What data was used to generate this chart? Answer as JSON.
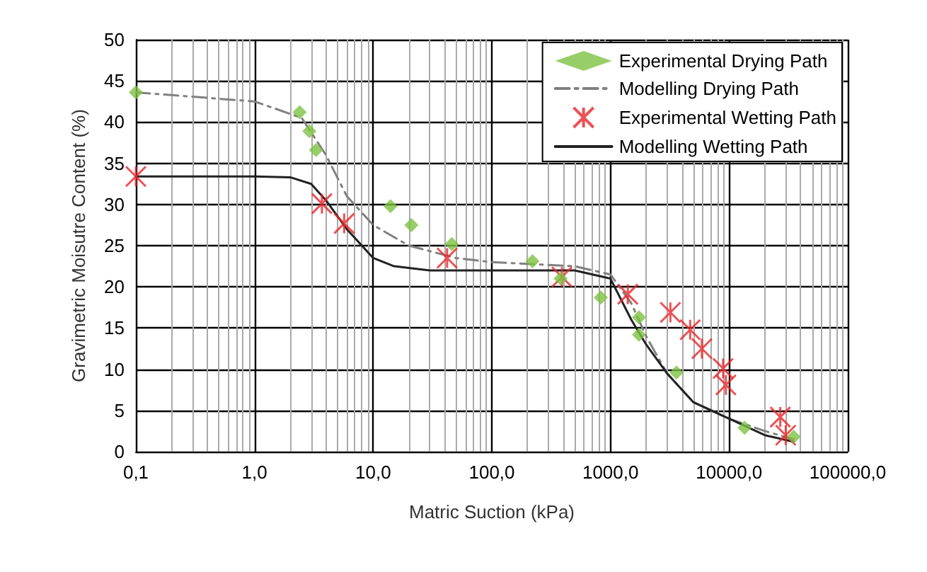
{
  "chart_data": {
    "type": "scatter",
    "xlabel": "Matric Suction (kPa)",
    "ylabel": "Gravimetric Moisutre Content (%)",
    "log": "x",
    "grid": true,
    "legend": "top right",
    "xlim": [
      0.1,
      100000
    ],
    "xticks": [
      {
        "value": 0.1,
        "label": "0,1"
      },
      {
        "value": 1,
        "label": "1,0"
      },
      {
        "value": 10,
        "label": "10,0"
      },
      {
        "value": 100,
        "label": "100,0"
      },
      {
        "value": 1000,
        "label": "1000,0"
      },
      {
        "value": 10000,
        "label": "10000,0"
      },
      {
        "value": 100000,
        "label": "100000,0"
      }
    ],
    "ylim": [
      0,
      50
    ],
    "yticks": [
      0,
      5,
      10,
      15,
      20,
      25,
      30,
      35,
      40,
      45,
      50
    ],
    "series": [
      {
        "name": "Experimental Drying Path",
        "marker": "diamond",
        "color": "#7dc242",
        "x": [
          0.1,
          2.4,
          2.9,
          3.3,
          14,
          21,
          46,
          220,
          380,
          830,
          1740,
          1740,
          3600,
          13500,
          35000
        ],
        "values": [
          43.6,
          41.2,
          38.9,
          36.6,
          29.8,
          27.5,
          25.2,
          23.1,
          21.0,
          18.7,
          16.3,
          14.2,
          9.6,
          2.9,
          1.8
        ]
      },
      {
        "name": "Modelling Drying Path",
        "type": "line",
        "marker": "none",
        "line_style": "dashdot",
        "color": "#808080",
        "x": [
          0.1,
          1,
          2.5,
          4,
          6,
          10,
          20,
          50,
          100,
          500,
          1000,
          1500,
          2000,
          3000,
          5000,
          10000,
          20000,
          35000
        ],
        "values": [
          43.6,
          42.5,
          40.5,
          36,
          31,
          27.5,
          25,
          23.5,
          23,
          22.5,
          21.5,
          18,
          14,
          9.5,
          6,
          4,
          2.5,
          1.5
        ]
      },
      {
        "name": "Experimental Wetting Path",
        "marker": "cross",
        "color": "#e8272a",
        "x": [
          0.1,
          3.7,
          5.7,
          42,
          390,
          1400,
          3200,
          4700,
          5900,
          8900,
          9400,
          27000,
          30000
        ],
        "values": [
          33.4,
          30.1,
          27.7,
          23.5,
          21.2,
          19.1,
          16.9,
          14.8,
          12.5,
          10.1,
          8.1,
          4.2,
          2.0
        ]
      },
      {
        "name": "Modelling Wetting Path",
        "type": "line",
        "marker": "none",
        "line_style": "solid",
        "color": "#222222",
        "x": [
          0.1,
          1,
          2,
          3,
          4,
          6,
          10,
          15,
          30,
          100,
          500,
          1000,
          1500,
          2000,
          3000,
          5000,
          10000,
          20000,
          35000
        ],
        "values": [
          33.4,
          33.4,
          33.3,
          32.5,
          30.5,
          27,
          23.5,
          22.5,
          22,
          22,
          22,
          21,
          16,
          13,
          9.5,
          6,
          4,
          2,
          1.2
        ]
      }
    ]
  }
}
